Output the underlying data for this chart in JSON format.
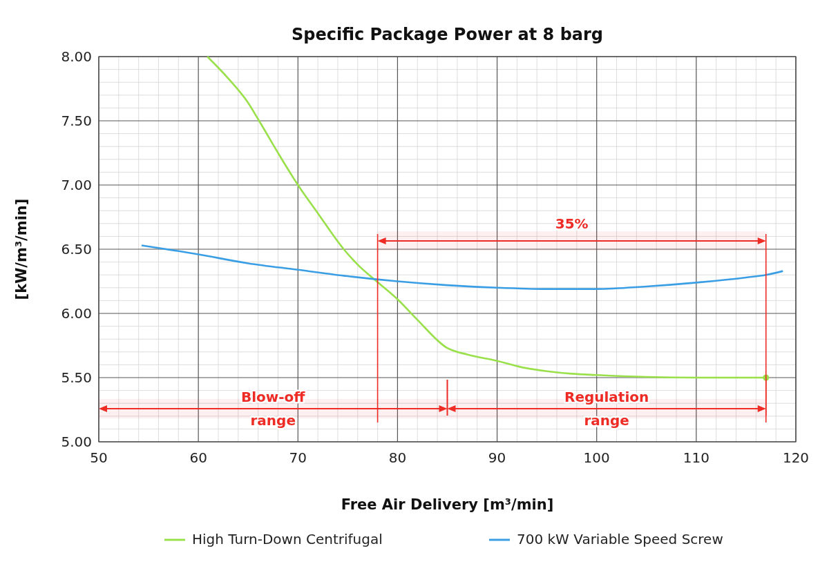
{
  "chart_data": {
    "type": "line",
    "title": "Specific Package Power at 8 barg",
    "xlabel": "Free Air Delivery [m³/min]",
    "ylabel": "[kW/m³/min]",
    "xlim": [
      50,
      120
    ],
    "xticks": [
      50,
      60,
      70,
      80,
      90,
      100,
      110,
      120
    ],
    "ylim": [
      5,
      8
    ],
    "yticks": [
      {
        "value": 5,
        "label": "5.00"
      },
      {
        "value": 5.5,
        "label": "5.50"
      },
      {
        "value": 6,
        "label": "6.00"
      },
      {
        "value": 6.5,
        "label": "6.50"
      },
      {
        "value": 7,
        "label": "7.00"
      },
      {
        "value": 7.5,
        "label": "7.50"
      },
      {
        "value": 8,
        "label": "8.00"
      }
    ],
    "grid": true,
    "legend": "bottom",
    "marker": "none",
    "line_style": "solid",
    "series": [
      {
        "name": "High Turn-Down Centrifugal",
        "color": "#99e04a",
        "x": [
          60.9,
          63,
          65,
          66.1,
          68,
          70,
          72,
          74.6,
          76,
          77.9,
          80,
          82,
          85,
          87,
          90,
          92.5,
          95,
          97.5,
          100,
          105,
          110,
          117
        ],
        "values": [
          8.0,
          7.83,
          7.64,
          7.5,
          7.25,
          7.0,
          6.78,
          6.5,
          6.38,
          6.25,
          6.11,
          5.95,
          5.73,
          5.68,
          5.63,
          5.58,
          5.55,
          5.53,
          5.52,
          5.505,
          5.5,
          5.5
        ]
      },
      {
        "name": "700 kW Variable Speed Screw",
        "color": "#3a9ee4",
        "x": [
          54.3,
          60,
          65,
          70,
          75,
          80,
          85,
          90,
          95,
          100,
          105,
          110,
          115,
          117,
          118.7
        ],
        "values": [
          6.53,
          6.46,
          6.39,
          6.34,
          6.29,
          6.25,
          6.22,
          6.2,
          6.19,
          6.19,
          6.21,
          6.24,
          6.28,
          6.3,
          6.33
        ]
      },
      {
        "type": "scatter",
        "marker": "circle",
        "color": "#99e04a",
        "x": [
          117
        ],
        "values": [
          5.5
        ]
      }
    ],
    "bands": [
      {
        "axis": "x",
        "from": 50,
        "to": 85,
        "label": "Blow-off range",
        "color": "#ee2b24"
      },
      {
        "axis": "x",
        "from": 85,
        "to": 117,
        "label": "Regulation range",
        "color": "#ee2b24"
      },
      {
        "axis": "x",
        "from": 78,
        "to": 117,
        "label": "35%",
        "color": "#ee2b24"
      }
    ]
  }
}
